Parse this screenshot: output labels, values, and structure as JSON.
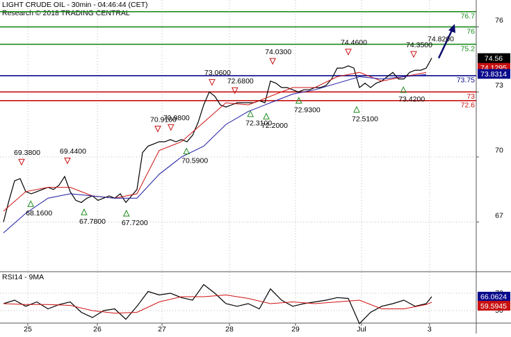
{
  "chart_data": {
    "type": "line",
    "title": "LIGHT CRUDE OIL - 30min - 04:46:44 (CET)",
    "subtitle": "Research © 2018 TRADING CENTRAL",
    "xlim": [
      -0.625,
      85
    ],
    "xticks": [
      {
        "value": 4.375,
        "label": "25"
      },
      {
        "value": 16.875,
        "label": "26"
      },
      {
        "value": 28.5,
        "label": "27"
      },
      {
        "value": 40.625,
        "label": "28"
      },
      {
        "value": 52.5,
        "label": "29"
      },
      {
        "value": 64.375,
        "label": "Jul"
      },
      {
        "value": 76.6,
        "label": "3"
      }
    ],
    "ylim": [
      64.74,
      77.24
    ],
    "yticks": [
      67,
      70,
      73,
      76
    ],
    "grid": true,
    "series": [
      {
        "color": "#000000",
        "x": [
          0,
          1,
          2,
          3,
          4,
          5,
          6,
          7,
          8,
          9,
          10,
          11,
          12,
          13,
          14,
          15,
          16,
          17,
          18,
          19,
          20,
          21,
          22,
          23,
          24,
          25,
          26,
          27,
          28,
          29,
          30,
          31,
          32,
          33,
          34,
          35,
          36,
          37,
          38,
          39,
          40,
          41,
          42,
          43,
          44,
          45,
          46,
          47,
          48,
          49,
          50,
          51,
          52,
          53,
          54,
          55,
          56,
          57,
          58,
          59,
          60,
          61,
          62,
          63,
          64,
          65,
          66,
          67,
          68,
          69,
          70,
          71,
          72,
          73,
          74,
          75,
          76,
          77
        ],
        "values": [
          67.0,
          68.0,
          68.9,
          69.0,
          68.4,
          68.3,
          68.4,
          68.5,
          68.6,
          68.5,
          68.7,
          69.1,
          68.4,
          68.0,
          67.9,
          68.1,
          68.2,
          68.0,
          68.1,
          68.2,
          68.1,
          68.3,
          67.9,
          68.2,
          68.5,
          70.2,
          70.5,
          70.6,
          70.7,
          70.7,
          70.8,
          70.7,
          70.8,
          70.7,
          71.0,
          71.6,
          72.4,
          73.0,
          72.8,
          72.4,
          72.3,
          72.4,
          72.5,
          72.5,
          72.5,
          72.5,
          72.6,
          72.5,
          73.5,
          73.4,
          73.2,
          73.2,
          73.1,
          73.0,
          73.1,
          73.1,
          73.2,
          73.2,
          73.3,
          73.6,
          74.1,
          74.1,
          74.2,
          74.1,
          73.2,
          73.4,
          73.2,
          73.4,
          73.5,
          73.7,
          73.9,
          73.6,
          73.6,
          73.9,
          74.0,
          74.0,
          74.1,
          74.56
        ]
      },
      {
        "color": "#d01010",
        "x": [
          0,
          4,
          8,
          12,
          16,
          20,
          24,
          28,
          32,
          36,
          40,
          44,
          48,
          52,
          56,
          60,
          64,
          68,
          72,
          76
        ],
        "values": [
          67.5,
          68.4,
          68.6,
          68.6,
          68.2,
          68.1,
          68.3,
          70.3,
          70.7,
          71.6,
          72.5,
          72.4,
          72.8,
          73.2,
          73.2,
          73.7,
          73.9,
          73.5,
          73.7,
          73.9
        ]
      },
      {
        "color": "#1a1aa0",
        "x": [
          0,
          4,
          8,
          12,
          16,
          20,
          24,
          28,
          32,
          36,
          40,
          44,
          48,
          52,
          56,
          60,
          64,
          68,
          72,
          76
        ],
        "values": [
          66.5,
          67.4,
          68.1,
          68.3,
          68.2,
          68.1,
          68.1,
          69.2,
          70.0,
          70.5,
          71.5,
          72.1,
          72.5,
          72.9,
          73.1,
          73.4,
          73.7,
          73.6,
          73.7,
          73.8
        ]
      }
    ],
    "levels": [
      {
        "value": 76.7,
        "color": "#1e8c1e"
      },
      {
        "value": 76,
        "color": "#1e8c1e"
      },
      {
        "value": 75.2,
        "color": "#1e8c1e"
      },
      {
        "value": 73.75,
        "color": "#0a0a8c"
      },
      {
        "value": 73,
        "color": "#c81010"
      },
      {
        "value": 72.6,
        "color": "#c81010"
      }
    ],
    "annotations": [
      {
        "kind": "high",
        "x": 3.25,
        "value": 69.38,
        "label": "69.3800"
      },
      {
        "kind": "high",
        "x": 11.5,
        "value": 69.44,
        "label": "69.4400"
      },
      {
        "kind": "low",
        "x": 4.9,
        "value": 68.16,
        "label": "68.1600"
      },
      {
        "kind": "low",
        "x": 14.5,
        "value": 67.78,
        "label": "67.7800"
      },
      {
        "kind": "low",
        "x": 22.1,
        "value": 67.72,
        "label": "67.7200"
      },
      {
        "kind": "high",
        "x": 27.75,
        "value": 70.91,
        "label": "70.9100"
      },
      {
        "kind": "high",
        "x": 30.1,
        "value": 70.98,
        "label": "70.9800"
      },
      {
        "kind": "low",
        "x": 32.9,
        "value": 70.59,
        "label": "70.5900"
      },
      {
        "kind": "high",
        "x": 37.5,
        "value": 73.06,
        "label": "73.0600"
      },
      {
        "kind": "high",
        "x": 41.6,
        "value": 72.68,
        "label": "72.6800"
      },
      {
        "kind": "low",
        "x": 44.4,
        "value": 72.31,
        "label": "72.3100"
      },
      {
        "kind": "low",
        "x": 47.25,
        "value": 72.2,
        "label": "72.2000"
      },
      {
        "kind": "high",
        "x": 48.4,
        "value": 74.03,
        "label": "74.0300"
      },
      {
        "kind": "low",
        "x": 53.1,
        "value": 72.93,
        "label": "72.9300"
      },
      {
        "kind": "high",
        "x": 62,
        "value": 74.46,
        "label": "74.4600"
      },
      {
        "kind": "low",
        "x": 63.5,
        "value": 72.51,
        "label": "72.5100"
      },
      {
        "kind": "low",
        "x": 71.9,
        "value": 73.42,
        "label": "73.4200"
      },
      {
        "kind": "high",
        "x": 73.75,
        "value": 74.35,
        "label": "74.3500"
      }
    ],
    "target": {
      "value": 74.82,
      "label": "74.8200",
      "color": "#0a0a6e"
    },
    "last_prices": [
      {
        "value": 74.1295,
        "color": "#c81010"
      },
      {
        "value": 74.56,
        "color": "#000000"
      },
      {
        "value": 73.8314,
        "color": "#0a0a8c"
      }
    ],
    "rsi": {
      "type": "line",
      "title": "RSI14 - 9MA",
      "ylim": [
        35.6,
        94
      ],
      "yticks": [
        50,
        70
      ],
      "series": [
        {
          "color": "#000000",
          "x": [
            0,
            2,
            4,
            6,
            8,
            10,
            12,
            14,
            16,
            18,
            20,
            22,
            24,
            26,
            28,
            30,
            32,
            34,
            36,
            38,
            40,
            42,
            44,
            46,
            48,
            50,
            52,
            54,
            56,
            58,
            60,
            62,
            64,
            66,
            68,
            70,
            72,
            74,
            76,
            77
          ],
          "values": [
            58,
            62,
            55,
            60,
            52,
            57,
            60,
            48,
            42,
            50,
            52,
            40,
            55,
            72,
            68,
            70,
            65,
            62,
            80,
            70,
            58,
            55,
            58,
            52,
            75,
            62,
            55,
            58,
            60,
            62,
            65,
            64,
            35,
            48,
            55,
            58,
            62,
            55,
            58,
            66.0624
          ]
        },
        {
          "color": "#d01010",
          "x": [
            0,
            4,
            8,
            12,
            16,
            20,
            24,
            28,
            32,
            36,
            40,
            44,
            48,
            52,
            56,
            60,
            64,
            68,
            72,
            76,
            77
          ],
          "values": [
            58,
            57,
            57,
            56,
            50,
            47,
            48,
            60,
            66,
            66,
            68,
            64,
            58,
            60,
            58,
            60,
            62,
            52,
            52,
            57,
            59.5945
          ]
        }
      ]
    }
  }
}
